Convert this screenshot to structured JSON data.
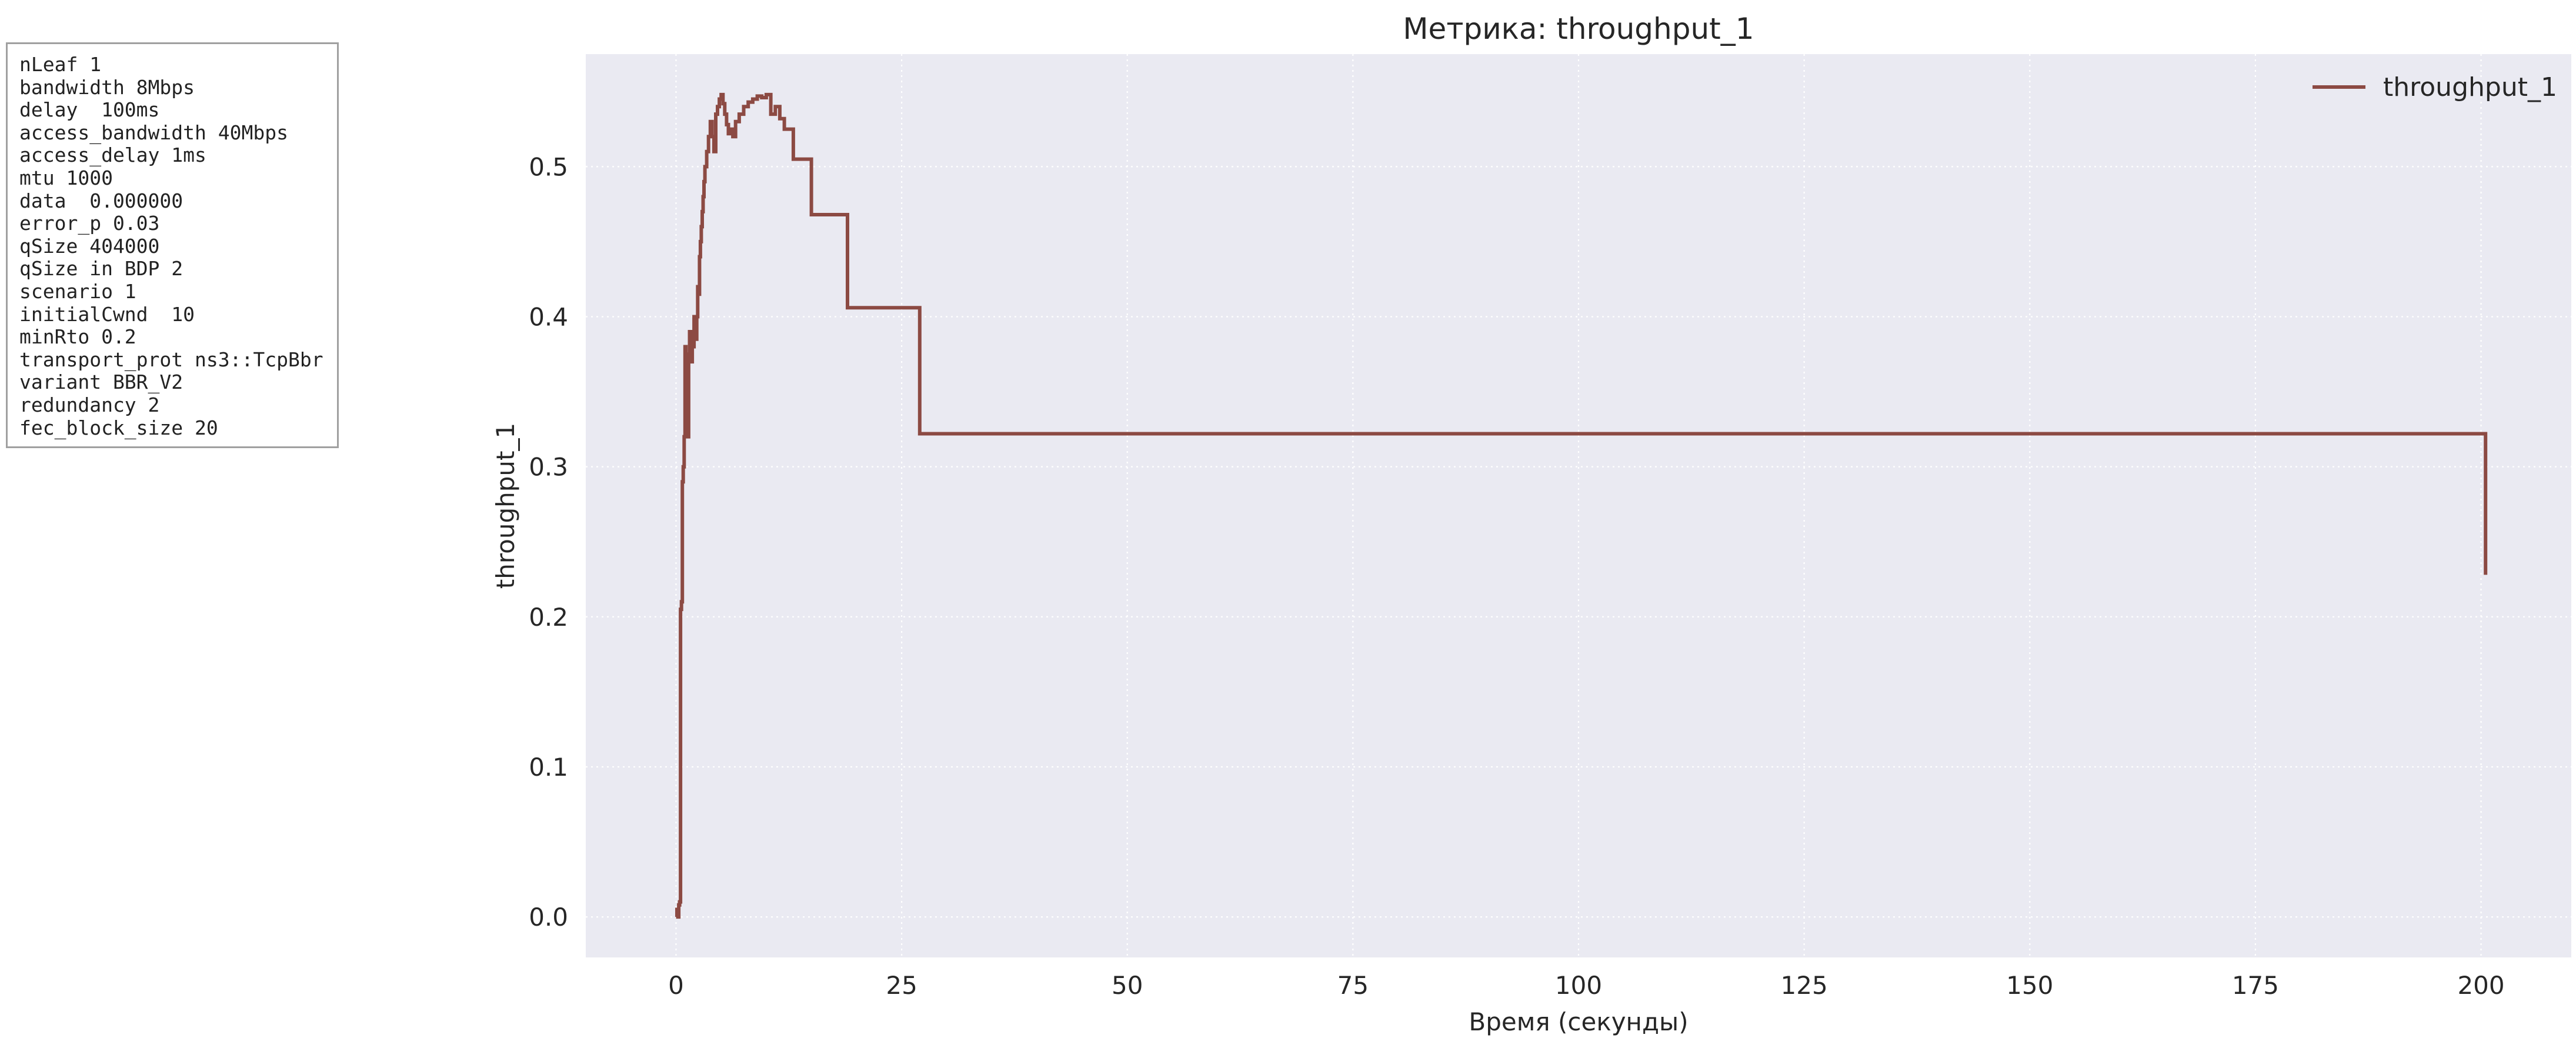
{
  "params": [
    "nLeaf 1",
    "bandwidth 8Mbps",
    "delay  100ms",
    "access_bandwidth 40Mbps",
    "access_delay 1ms",
    "mtu 1000",
    "data  0.000000",
    "error_p 0.03",
    "qSize 404000",
    "qSize in BDP 2",
    "scenario 1",
    "initialCwnd  10",
    "minRto 0.2",
    "transport_prot ns3::TcpBbr",
    "variant BBR_V2",
    "redundancy 2",
    "fec_block_size 20"
  ],
  "colors": {
    "plot_background": "#eaeaf2",
    "grid": "#ffffff",
    "series": "#8c4a43",
    "text": "#262626"
  },
  "chart_data": {
    "type": "line",
    "title": "Метрика: throughput_1",
    "xlabel": "Время (секунды)",
    "ylabel": "throughput_1",
    "xlim": [
      -10,
      210
    ],
    "ylim": [
      -0.027,
      0.575
    ],
    "xticks": [
      0,
      25,
      50,
      75,
      100,
      125,
      150,
      175,
      200
    ],
    "yticks": [
      0.0,
      0.1,
      0.2,
      0.3,
      0.4,
      0.5
    ],
    "xtick_labels": [
      "0",
      "25",
      "50",
      "75",
      "100",
      "125",
      "150",
      "175",
      "200"
    ],
    "ytick_labels": [
      "0.0",
      "0.1",
      "0.2",
      "0.3",
      "0.4",
      "0.5"
    ],
    "grid": true,
    "grid_style": "dotted",
    "legend_position": "top-right",
    "line_style": "steps",
    "series": [
      {
        "name": "throughput_1",
        "color": "#8c4a43",
        "x": [
          0.0,
          0.1,
          0.2,
          0.3,
          0.4,
          0.5,
          0.6,
          0.7,
          0.8,
          0.9,
          1.0,
          1.1,
          1.2,
          1.3,
          1.4,
          1.5,
          1.6,
          1.7,
          1.8,
          1.9,
          2.0,
          2.1,
          2.2,
          2.3,
          2.4,
          2.5,
          2.6,
          2.7,
          2.8,
          2.9,
          3.0,
          3.1,
          3.2,
          3.4,
          3.6,
          3.8,
          4.0,
          4.2,
          4.4,
          4.6,
          4.8,
          5.0,
          5.2,
          5.4,
          5.6,
          5.8,
          6.0,
          6.3,
          6.6,
          7.0,
          7.5,
          8.0,
          8.5,
          9.0,
          9.5,
          10.0,
          10.5,
          11.0,
          11.5,
          12.0,
          13.0,
          15.0,
          19.0,
          27.0,
          200.5
        ],
        "y": [
          0.0,
          0.005,
          0.0,
          0.008,
          0.01,
          0.205,
          0.21,
          0.29,
          0.3,
          0.32,
          0.38,
          0.33,
          0.375,
          0.32,
          0.37,
          0.39,
          0.38,
          0.37,
          0.39,
          0.38,
          0.4,
          0.39,
          0.385,
          0.4,
          0.42,
          0.415,
          0.44,
          0.45,
          0.46,
          0.47,
          0.48,
          0.49,
          0.5,
          0.51,
          0.52,
          0.53,
          0.52,
          0.51,
          0.535,
          0.54,
          0.545,
          0.548,
          0.542,
          0.535,
          0.528,
          0.522,
          0.525,
          0.52,
          0.53,
          0.535,
          0.54,
          0.543,
          0.545,
          0.547,
          0.546,
          0.548,
          0.535,
          0.54,
          0.532,
          0.525,
          0.505,
          0.468,
          0.406,
          0.322,
          0.228
        ]
      }
    ]
  }
}
